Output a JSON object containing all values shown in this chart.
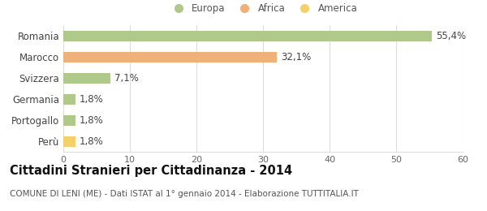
{
  "categories": [
    "Romania",
    "Marocco",
    "Svizzera",
    "Germania",
    "Portogallo",
    "Perù"
  ],
  "values": [
    55.4,
    32.1,
    7.1,
    1.8,
    1.8,
    1.8
  ],
  "labels": [
    "55,4%",
    "32,1%",
    "7,1%",
    "1,8%",
    "1,8%",
    "1,8%"
  ],
  "bar_colors": [
    "#aec98a",
    "#f0b07a",
    "#aec98a",
    "#aec98a",
    "#aec98a",
    "#f5d06a"
  ],
  "legend_items": [
    {
      "label": "Europa",
      "color": "#aec98a"
    },
    {
      "label": "Africa",
      "color": "#f0b07a"
    },
    {
      "label": "America",
      "color": "#f5d06a"
    }
  ],
  "xlim": [
    0,
    60
  ],
  "xticks": [
    0,
    10,
    20,
    30,
    40,
    50,
    60
  ],
  "title": "Cittadini Stranieri per Cittadinanza - 2014",
  "subtitle": "COMUNE DI LENI (ME) - Dati ISTAT al 1° gennaio 2014 - Elaborazione TUTTITALIA.IT",
  "background_color": "#ffffff",
  "bar_height": 0.5,
  "grid_color": "#dddddd",
  "label_fontsize": 8.5,
  "ytick_fontsize": 8.5,
  "xtick_fontsize": 8,
  "title_fontsize": 10.5,
  "subtitle_fontsize": 7.5
}
